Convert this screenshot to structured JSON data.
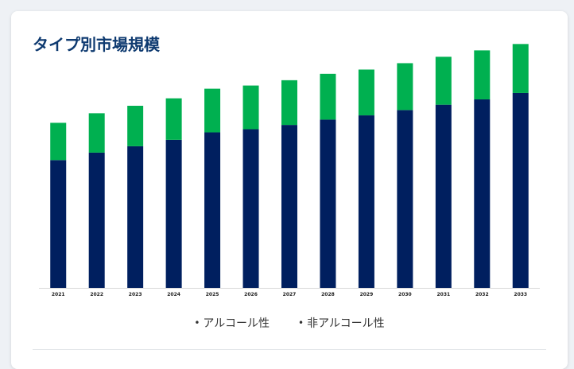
{
  "page": {
    "title": "タイプ別市場規模"
  },
  "chart_data": {
    "type": "bar",
    "stacked": true,
    "title": "タイプ別市場規模",
    "xlabel": "",
    "ylabel": "",
    "categories": [
      "2021",
      "2022",
      "2023",
      "2024",
      "2025",
      "2026",
      "2027",
      "2028",
      "2029",
      "2030",
      "2031",
      "2032",
      "2033"
    ],
    "series": [
      {
        "name": "アルコール性",
        "color": "#001f5f",
        "values": [
          120,
          127,
          133,
          139,
          146,
          149,
          153,
          158,
          162,
          167,
          172,
          177,
          183
        ]
      },
      {
        "name": "非アルコール性",
        "color": "#00b050",
        "values": [
          35,
          37,
          38,
          39,
          41,
          41,
          42,
          43,
          43,
          44,
          45,
          46,
          46
        ]
      }
    ],
    "ylim": [
      0,
      230
    ],
    "grid": false,
    "legend": "bottom-center",
    "legend_items": [
      "アルコール性",
      "非アルコール性"
    ]
  }
}
